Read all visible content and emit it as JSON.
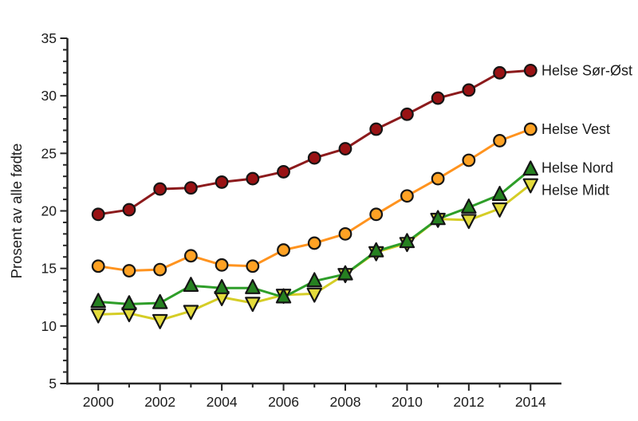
{
  "figure": {
    "background": "#ffffff",
    "text_color": "#1c1c1c",
    "axis_color": "#262626"
  },
  "chart_data": {
    "type": "line",
    "title": "",
    "xlabel": "",
    "ylabel": "Prosent av alle fødte",
    "xlim": [
      1999,
      2015
    ],
    "ylim": [
      5,
      35
    ],
    "grid": false,
    "legend_position": "right-of-line-ends",
    "y_major_ticks": [
      5,
      10,
      15,
      20,
      25,
      30,
      35
    ],
    "y_minor_step": 1,
    "x_labeled_ticks": [
      2000,
      2002,
      2004,
      2006,
      2008,
      2010,
      2012,
      2014
    ],
    "x_minor_ticks": [
      2001,
      2003,
      2005,
      2007,
      2009,
      2011,
      2013
    ],
    "x": [
      2000,
      2001,
      2002,
      2003,
      2004,
      2005,
      2006,
      2007,
      2008,
      2009,
      2010,
      2011,
      2012,
      2013,
      2014
    ],
    "series": [
      {
        "name": "Helse Sør-Øst",
        "marker": "circle",
        "line_color": "#8C1A1C",
        "marker_fill": "#991214",
        "values": [
          19.7,
          20.1,
          21.9,
          22.0,
          22.5,
          22.8,
          23.4,
          24.6,
          25.4,
          27.1,
          28.4,
          29.8,
          30.5,
          32.0,
          32.2
        ]
      },
      {
        "name": "Helse Vest",
        "marker": "circle",
        "line_color": "#FF931E",
        "marker_fill": "#FFA224",
        "values": [
          15.2,
          14.8,
          14.9,
          16.1,
          15.3,
          15.2,
          16.6,
          17.2,
          18.0,
          19.7,
          21.3,
          22.8,
          24.4,
          26.1,
          27.1
        ]
      },
      {
        "name": "Helse Nord",
        "marker": "triangle-up",
        "line_color": "#2E9E29",
        "marker_fill": "#268121",
        "values": [
          12.1,
          11.9,
          12.0,
          13.5,
          13.3,
          13.3,
          12.5,
          13.9,
          14.5,
          16.5,
          17.3,
          19.3,
          20.3,
          21.4,
          23.6
        ]
      },
      {
        "name": "Helse Midt",
        "marker": "triangle-down",
        "line_color": "#D5CD26",
        "marker_fill": "#E4DB3B",
        "values": [
          11.0,
          11.1,
          10.5,
          11.3,
          12.5,
          12.0,
          12.7,
          12.8,
          14.5,
          16.4,
          17.2,
          19.3,
          19.2,
          20.2,
          22.3
        ]
      }
    ]
  }
}
